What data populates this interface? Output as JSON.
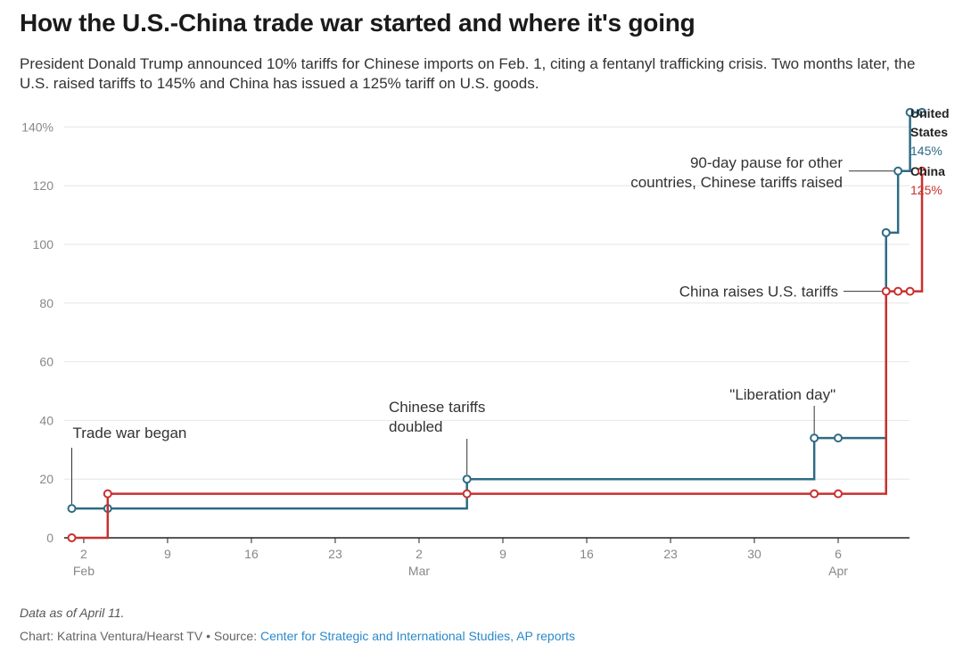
{
  "title": "How the U.S.-China trade war started and where it's going",
  "subtitle": "President Donald Trump announced 10% tariffs for Chinese imports on Feb. 1, citing a fentanyl trafficking crisis. Two months later, the U.S. raised tariffs to 145% and China has issued a 125% tariff on U.S. goods.",
  "footer": {
    "note": "Data as of April 11.",
    "credit_prefix": "Chart: Katrina Ventura/Hearst TV • Source: ",
    "source": "Center for Strategic and International Studies, AP reports"
  },
  "colors": {
    "us": "#2e6b85",
    "china": "#c8302e",
    "grid": "#e6e6e6",
    "axis": "#222222",
    "tick": "#888888"
  },
  "chart_data": {
    "type": "line",
    "step": true,
    "title": "How the U.S.-China trade war started and where it's going",
    "x_unit": "days since Jan 31, 2025",
    "ylim": [
      0,
      145
    ],
    "y_ticks": [
      {
        "value": 0,
        "label": "0"
      },
      {
        "value": 20,
        "label": "20"
      },
      {
        "value": 40,
        "label": "40"
      },
      {
        "value": 60,
        "label": "60"
      },
      {
        "value": 80,
        "label": "80"
      },
      {
        "value": 100,
        "label": "100"
      },
      {
        "value": 120,
        "label": "120"
      },
      {
        "value": 140,
        "label": "140%"
      }
    ],
    "x_ticks": [
      {
        "day": 2,
        "label": "2",
        "sub": "Feb"
      },
      {
        "day": 9,
        "label": "9"
      },
      {
        "day": 16,
        "label": "16"
      },
      {
        "day": 23,
        "label": "23"
      },
      {
        "day": 30,
        "label": "2",
        "sub": "Mar"
      },
      {
        "day": 37,
        "label": "9"
      },
      {
        "day": 44,
        "label": "16"
      },
      {
        "day": 51,
        "label": "23"
      },
      {
        "day": 58,
        "label": "30"
      },
      {
        "day": 65,
        "label": "6",
        "sub": "Apr"
      }
    ],
    "xlim": [
      1,
      70
    ],
    "series": [
      {
        "name": "United States",
        "label_lines": [
          "United",
          "States"
        ],
        "end_value": "145%",
        "color_key": "us",
        "points": [
          [
            1,
            10
          ],
          [
            4,
            10
          ],
          [
            34,
            20
          ],
          [
            63,
            34
          ],
          [
            65,
            34
          ],
          [
            69,
            104
          ],
          [
            70,
            125
          ],
          [
            71,
            145
          ],
          [
            72,
            145
          ]
        ]
      },
      {
        "name": "China",
        "label_lines": [
          "China"
        ],
        "end_value": "125%",
        "color_key": "china",
        "points": [
          [
            1,
            0
          ],
          [
            4,
            15
          ],
          [
            34,
            15
          ],
          [
            63,
            15
          ],
          [
            65,
            15
          ],
          [
            69,
            84
          ],
          [
            70,
            84
          ],
          [
            71,
            84
          ],
          [
            72,
            125
          ]
        ]
      }
    ],
    "annotations": [
      {
        "lines": [
          "Trade war began"
        ],
        "series": 0,
        "point": 0
      },
      {
        "lines": [
          "Chinese tariffs",
          "doubled"
        ],
        "series": 0,
        "point": 2
      },
      {
        "lines": [
          "\"Liberation day\""
        ],
        "series": 0,
        "point": 3
      },
      {
        "lines": [
          "China raises U.S. tariffs"
        ],
        "series": 1,
        "point": 5
      },
      {
        "lines": [
          "90-day pause for other",
          "countries, Chinese tariffs raised"
        ],
        "series": 0,
        "point": 6
      }
    ]
  }
}
